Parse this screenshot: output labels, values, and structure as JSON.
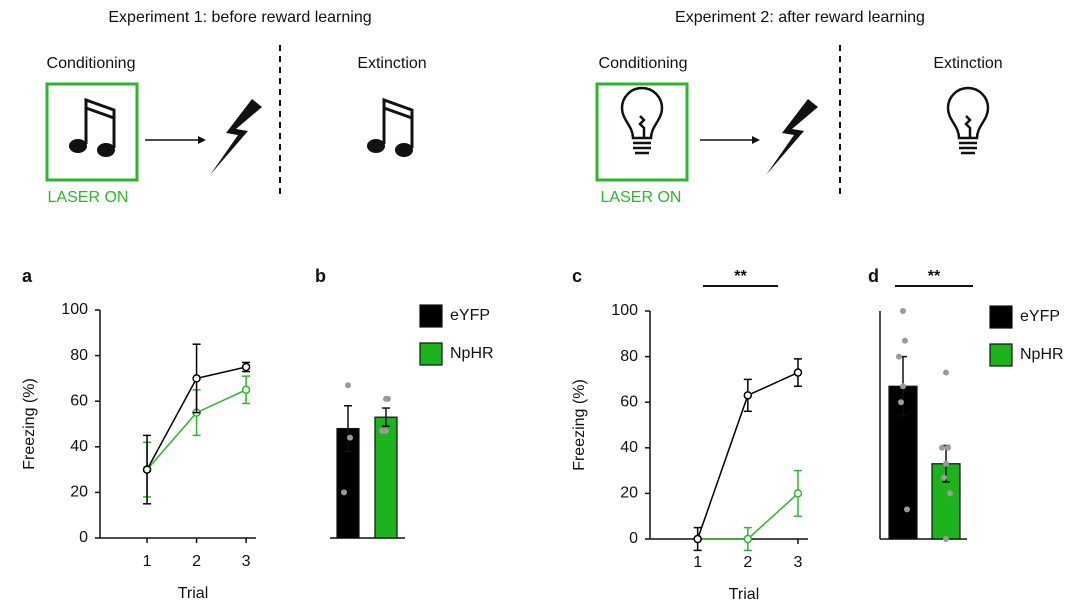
{
  "diagram": {
    "experiments": [
      {
        "title": "Experiment 1: before reward learning",
        "conditioning": "Conditioning",
        "extinction": "Extinction",
        "laser": "LASER ON"
      },
      {
        "title": "Experiment 2: after reward learning",
        "conditioning": "Conditioning",
        "extinction": "Extinction",
        "laser": "LASER ON"
      }
    ]
  },
  "chart_data": [
    {
      "type": "line",
      "panel": "a",
      "ylabel": "Freezing (%)",
      "xlabel": "Trial",
      "x": [
        1,
        2,
        3
      ],
      "xlim": [
        0.05,
        3.2
      ],
      "xticks": [
        1,
        2,
        3
      ],
      "ylim": [
        0,
        100
      ],
      "yticks": [
        0,
        20,
        40,
        60,
        80,
        100
      ],
      "series": [
        {
          "color": "#000000",
          "values": [
            30,
            70,
            75
          ],
          "errors": [
            15,
            15,
            2
          ]
        },
        {
          "color": "#2db52d",
          "values": [
            30,
            55,
            65
          ],
          "errors": [
            12,
            10,
            6
          ]
        }
      ]
    },
    {
      "type": "bar",
      "panel": "b",
      "ylim": [
        0,
        100
      ],
      "series": [
        {
          "name": "eYFP",
          "color": "#000000",
          "values": [
            48
          ],
          "errors": [
            10
          ],
          "points": [
            67,
            44,
            20
          ]
        },
        {
          "name": "NpHR",
          "color": "#1db31d",
          "values": [
            53
          ],
          "errors": [
            4
          ],
          "points": [
            61,
            61,
            47,
            47
          ]
        }
      ]
    },
    {
      "type": "line",
      "panel": "c",
      "ylabel": "Freezing (%)",
      "xlabel": "Trial",
      "significance": "**",
      "x": [
        1,
        2,
        3
      ],
      "xlim": [
        0.05,
        3.2
      ],
      "xticks": [
        1,
        2,
        3
      ],
      "ylim": [
        0,
        100
      ],
      "yticks": [
        0,
        20,
        40,
        60,
        80,
        100
      ],
      "series": [
        {
          "color": "#000000",
          "values": [
            0,
            63,
            73
          ],
          "errors": [
            5,
            7,
            6
          ]
        },
        {
          "color": "#2db52d",
          "values": [
            0,
            0,
            20
          ],
          "errors": [
            0,
            5,
            10
          ]
        }
      ]
    },
    {
      "type": "bar",
      "panel": "d",
      "significance": "**",
      "ylim": [
        0,
        100
      ],
      "series": [
        {
          "name": "eYFP",
          "color": "#000000",
          "values": [
            67
          ],
          "errors": [
            13
          ],
          "points": [
            100,
            87,
            80,
            67,
            60,
            13
          ]
        },
        {
          "name": "NpHR",
          "color": "#1db31d",
          "values": [
            33
          ],
          "errors": [
            8
          ],
          "points": [
            73,
            40,
            40,
            33,
            27,
            20,
            0
          ]
        }
      ]
    }
  ]
}
